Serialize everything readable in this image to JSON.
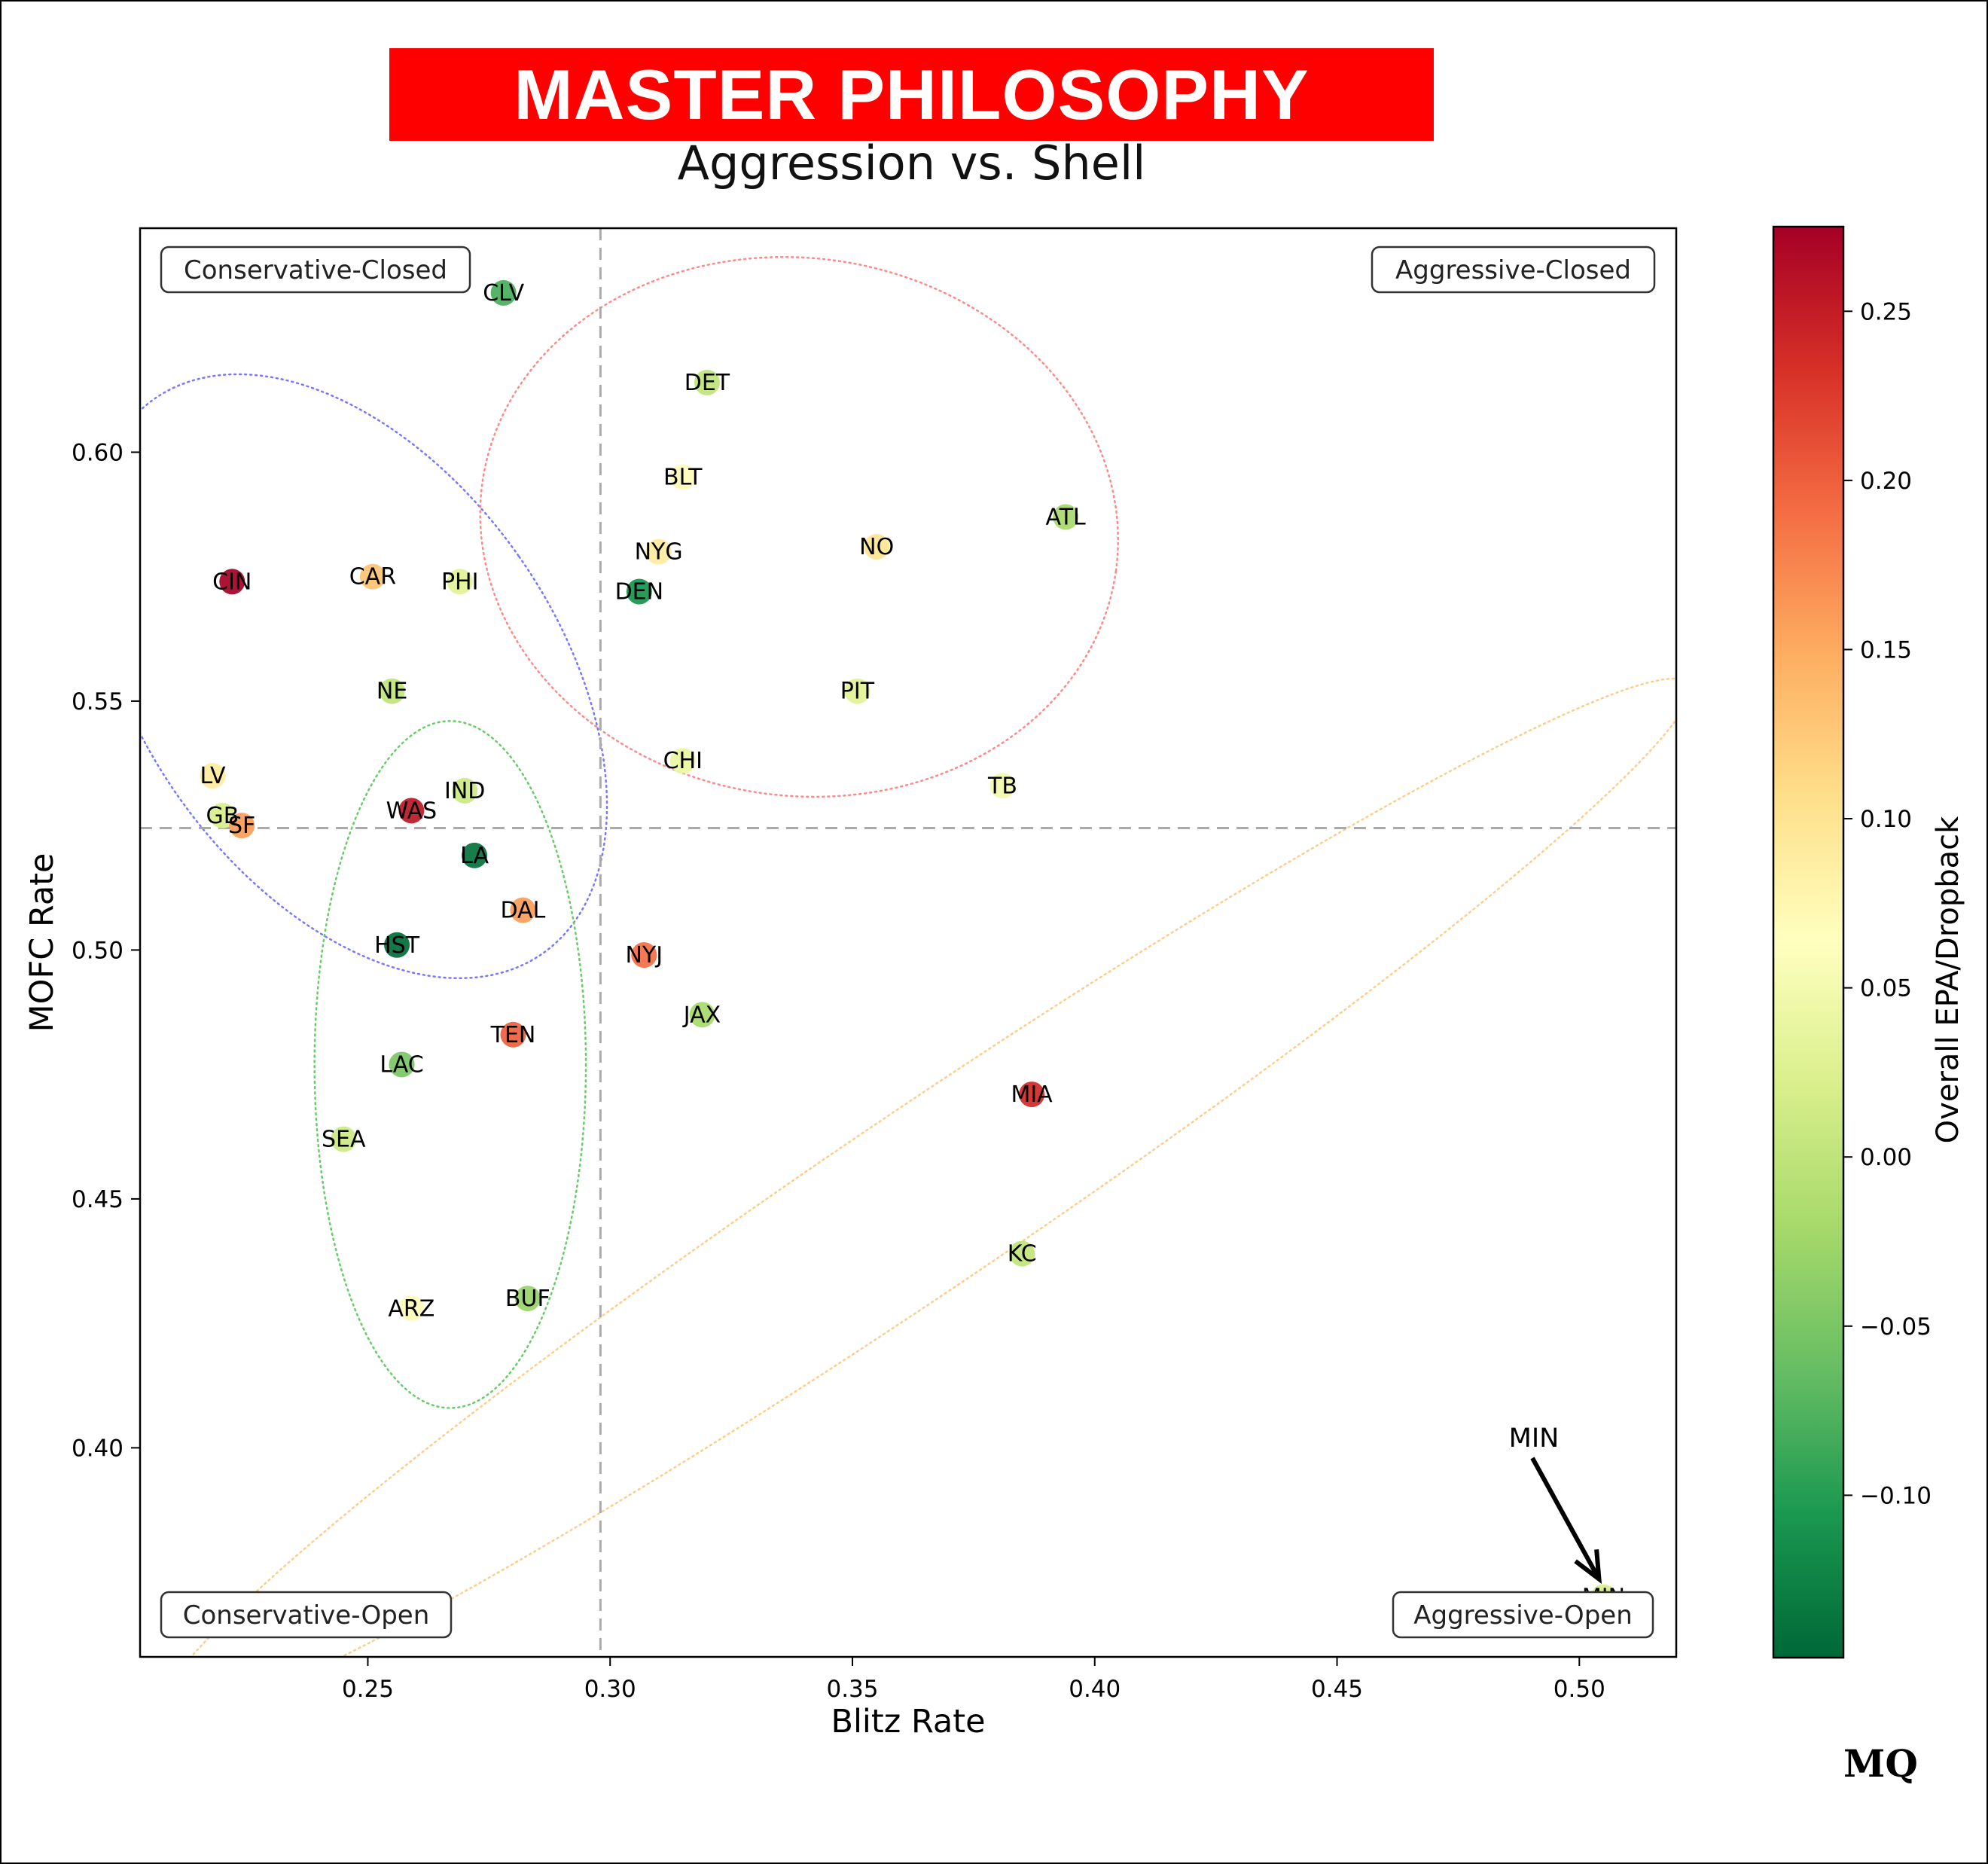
{
  "header": {
    "title": "MASTER PHILOSOPHY",
    "subtitle": "Aggression vs. Shell"
  },
  "logo": {
    "text": "MQ"
  },
  "chart_data": {
    "type": "scatter",
    "xlabel": "Blitz Rate",
    "ylabel": "MOFC Rate",
    "xlim": [
      0.203,
      0.52
    ],
    "ylim": [
      0.358,
      0.645
    ],
    "xticks": [
      0.25,
      0.3,
      0.35,
      0.4,
      0.45,
      0.5
    ],
    "xtick_labels": [
      "0.25",
      "0.30",
      "0.35",
      "0.40",
      "0.45",
      "0.50"
    ],
    "yticks": [
      0.4,
      0.45,
      0.5,
      0.55,
      0.6
    ],
    "ytick_labels": [
      "0.40",
      "0.45",
      "0.50",
      "0.55",
      "0.60"
    ],
    "reference_lines": {
      "x": 0.298,
      "y": 0.5245
    },
    "quadrant_labels": [
      "Conservative-Closed",
      "Aggressive-Closed",
      "Conservative-Open",
      "Aggressive-Open"
    ],
    "colorbar": {
      "label": "Overall EPA/Dropback",
      "min": -0.148,
      "max": 0.275,
      "ticks": [
        -0.1,
        -0.05,
        0.0,
        0.05,
        0.1,
        0.15,
        0.2,
        0.25
      ],
      "tick_labels": [
        "−0.10",
        "−0.05",
        "0.00",
        "0.05",
        "0.10",
        "0.15",
        "0.20",
        "0.25"
      ],
      "colors": [
        "#006837",
        "#1a9850",
        "#66bd63",
        "#a6d96a",
        "#d9ef8b",
        "#ffffbf",
        "#fee08b",
        "#fdae61",
        "#f46d43",
        "#d73027",
        "#a50026"
      ]
    },
    "annotation": {
      "text": "MIN",
      "team": "MIN"
    },
    "points": [
      {
        "team": "CLV",
        "x": 0.278,
        "y": 0.632,
        "epa": -0.08
      },
      {
        "team": "DET",
        "x": 0.32,
        "y": 0.614,
        "epa": 0.0
      },
      {
        "team": "BLT",
        "x": 0.315,
        "y": 0.595,
        "epa": 0.07
      },
      {
        "team": "ATL",
        "x": 0.394,
        "y": 0.587,
        "epa": -0.02
      },
      {
        "team": "NYG",
        "x": 0.31,
        "y": 0.58,
        "epa": 0.09
      },
      {
        "team": "NO",
        "x": 0.355,
        "y": 0.581,
        "epa": 0.1
      },
      {
        "team": "CIN",
        "x": 0.222,
        "y": 0.574,
        "epa": 0.275
      },
      {
        "team": "CAR",
        "x": 0.251,
        "y": 0.575,
        "epa": 0.13
      },
      {
        "team": "PHI",
        "x": 0.269,
        "y": 0.574,
        "epa": 0.03
      },
      {
        "team": "DEN",
        "x": 0.306,
        "y": 0.572,
        "epa": -0.11
      },
      {
        "team": "NE",
        "x": 0.255,
        "y": 0.552,
        "epa": 0.0
      },
      {
        "team": "PIT",
        "x": 0.351,
        "y": 0.552,
        "epa": 0.03
      },
      {
        "team": "CHI",
        "x": 0.315,
        "y": 0.538,
        "epa": 0.04
      },
      {
        "team": "LV",
        "x": 0.218,
        "y": 0.535,
        "epa": 0.09
      },
      {
        "team": "IND",
        "x": 0.27,
        "y": 0.532,
        "epa": 0.01
      },
      {
        "team": "TB",
        "x": 0.381,
        "y": 0.533,
        "epa": 0.05
      },
      {
        "team": "WAS",
        "x": 0.259,
        "y": 0.528,
        "epa": 0.255
      },
      {
        "team": "GB",
        "x": 0.22,
        "y": 0.527,
        "epa": 0.02
      },
      {
        "team": "SF",
        "x": 0.224,
        "y": 0.525,
        "epa": 0.16
      },
      {
        "team": "LA",
        "x": 0.272,
        "y": 0.519,
        "epa": -0.14
      },
      {
        "team": "DAL",
        "x": 0.282,
        "y": 0.508,
        "epa": 0.16
      },
      {
        "team": "HST",
        "x": 0.256,
        "y": 0.501,
        "epa": -0.145
      },
      {
        "team": "NYJ",
        "x": 0.307,
        "y": 0.499,
        "epa": 0.19
      },
      {
        "team": "JAX",
        "x": 0.319,
        "y": 0.487,
        "epa": -0.02
      },
      {
        "team": "TEN",
        "x": 0.28,
        "y": 0.483,
        "epa": 0.2
      },
      {
        "team": "LAC",
        "x": 0.257,
        "y": 0.477,
        "epa": -0.05
      },
      {
        "team": "MIA",
        "x": 0.387,
        "y": 0.471,
        "epa": 0.24
      },
      {
        "team": "SEA",
        "x": 0.245,
        "y": 0.462,
        "epa": 0.01
      },
      {
        "team": "KC",
        "x": 0.385,
        "y": 0.439,
        "epa": 0.0
      },
      {
        "team": "BUF",
        "x": 0.283,
        "y": 0.43,
        "epa": -0.03
      },
      {
        "team": "ARZ",
        "x": 0.259,
        "y": 0.428,
        "epa": 0.07
      },
      {
        "team": "MIN",
        "x": 0.505,
        "y": 0.37,
        "epa": 0.02
      }
    ],
    "ellipses": [
      {
        "color": "#7777ff",
        "cx": 0.246,
        "cy": 0.555,
        "rx": 0.043,
        "ry": 0.068,
        "angle_deg": -35
      },
      {
        "color": "#ff8888",
        "cx": 0.339,
        "cy": 0.585,
        "rx": 0.066,
        "ry": 0.054,
        "angle_deg": 8
      },
      {
        "color": "#66cc66",
        "cx": 0.267,
        "cy": 0.477,
        "rx": 0.028,
        "ry": 0.069,
        "angle_deg": 0
      },
      {
        "color": "#ffcc88",
        "cx": 0.365,
        "cy": 0.45,
        "rx": 0.19,
        "ry": 0.018,
        "angle_deg": -34
      }
    ]
  }
}
